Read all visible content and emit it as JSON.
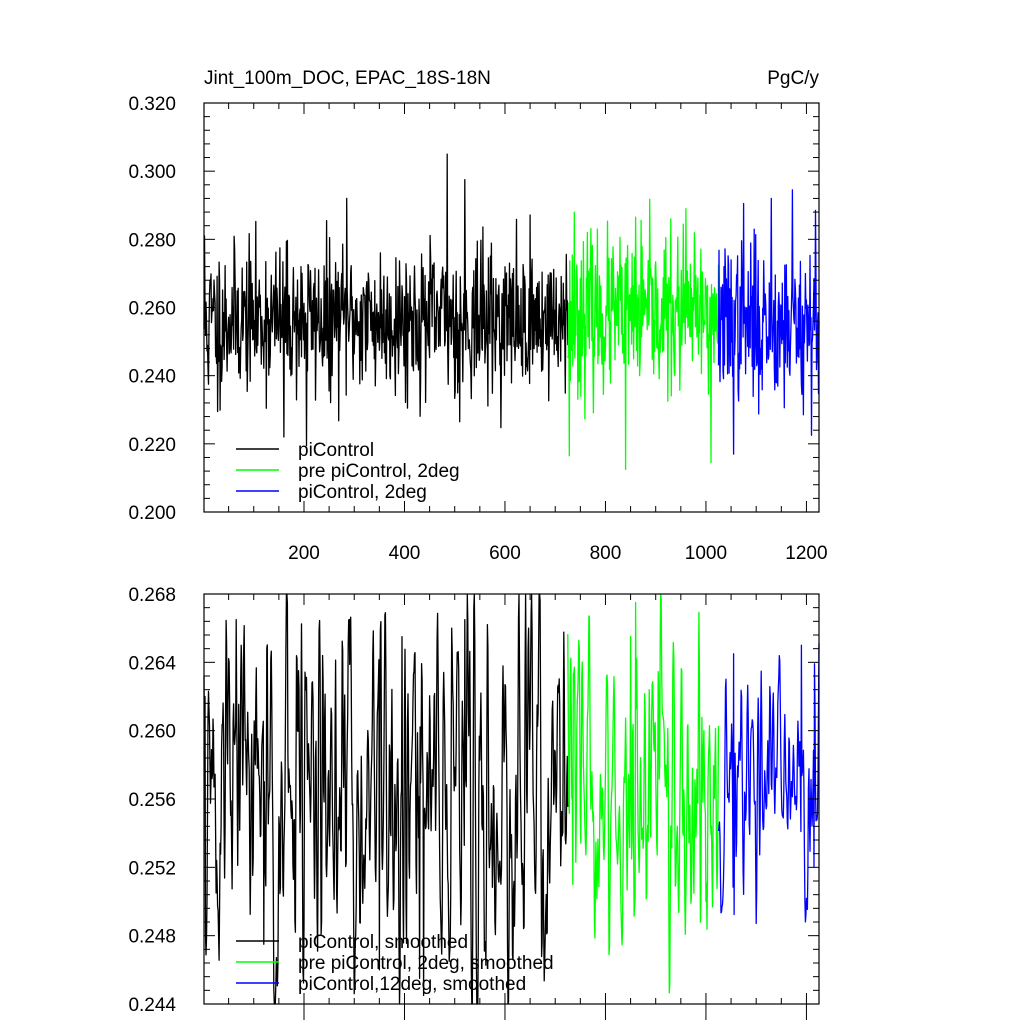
{
  "chart_data": [
    {
      "type": "line",
      "title": "Jint_100m_DOC, EPAC_18S-18N",
      "units_label": "PgC/y",
      "xlim": [
        1,
        1225
      ],
      "ylim": [
        0.2,
        0.32
      ],
      "x_ticks": [
        200,
        400,
        600,
        800,
        1000,
        1200
      ],
      "x_tick_labels": [
        "200",
        "400",
        "600",
        "800",
        "1000",
        "1200"
      ],
      "y_ticks": [
        0.2,
        0.22,
        0.24,
        0.26,
        0.28,
        0.3,
        0.32
      ],
      "y_tick_labels": [
        "0.200",
        "0.220",
        "0.240",
        "0.260",
        "0.280",
        "0.300",
        "0.320"
      ],
      "grid": false,
      "legend_position": "bottom-left",
      "series": [
        {
          "name": "piControl",
          "color": "#000000",
          "x_range": [
            1,
            725
          ],
          "mean": 0.2565,
          "spread": 0.0105,
          "smoothing": 1,
          "seed": 11,
          "peaks": [
            [
              2,
              0.281
            ],
            [
              10,
              0.2375
            ],
            [
              28,
              0.2295
            ],
            [
              160,
              0.222
            ],
            [
              205,
              0.2195
            ],
            [
              245,
              0.2855
            ],
            [
              250,
              0.2355
            ],
            [
              285,
              0.292
            ],
            [
              485,
              0.305
            ],
            [
              510,
              0.2265
            ],
            [
              520,
              0.2975
            ]
          ]
        },
        {
          "name": "pre piControl, 2deg",
          "color": "#00ff00",
          "x_range": [
            725,
            1025
          ],
          "mean": 0.2575,
          "spread": 0.0115,
          "smoothing": 1,
          "seed": 23,
          "peaks": [
            [
              728,
              0.2165
            ],
            [
              738,
              0.288
            ],
            [
              840,
              0.2125
            ],
            [
              860,
              0.2865
            ],
            [
              960,
              0.289
            ],
            [
              1010,
              0.2145
            ]
          ]
        },
        {
          "name": "piControl, 2deg",
          "color": "#0000ff",
          "x_range": [
            1025,
            1225
          ],
          "mean": 0.2555,
          "spread": 0.0115,
          "smoothing": 1,
          "seed": 37,
          "peaks": [
            [
              1055,
              0.217
            ],
            [
              1075,
              0.2905
            ],
            [
              1130,
              0.292
            ],
            [
              1172,
              0.2945
            ],
            [
              1210,
              0.2225
            ],
            [
              1218,
              0.2885
            ]
          ]
        }
      ]
    },
    {
      "type": "line",
      "title": "",
      "xlim": [
        1,
        1225
      ],
      "ylim": [
        0.244,
        0.268
      ],
      "x_ticks": [
        200,
        400,
        600,
        800,
        1000,
        1200
      ],
      "x_tick_labels": [],
      "y_ticks": [
        0.244,
        0.248,
        0.252,
        0.256,
        0.26,
        0.264,
        0.268
      ],
      "y_tick_labels": [
        "0.244",
        "0.248",
        "0.252",
        "0.256",
        "0.260",
        "0.264",
        "0.268"
      ],
      "grid": false,
      "legend_position": "bottom-left",
      "series": [
        {
          "name": "piControl, smoothed",
          "color": "#000000",
          "x_range": [
            1,
            725
          ],
          "mean": 0.2562,
          "spread": 0.0055,
          "smoothing": 2,
          "seed": 51,
          "peaks": [
            [
              3,
              0.262
            ],
            [
              25,
              0.2505
            ],
            [
              65,
              0.2665
            ],
            [
              120,
              0.2475
            ],
            [
              200,
              0.2485
            ],
            [
              290,
              0.2665
            ],
            [
              350,
              0.246
            ],
            [
              395,
              0.2655
            ],
            [
              430,
              0.2455
            ],
            [
              438,
              0.2445
            ],
            [
              520,
              0.2665
            ]
          ]
        },
        {
          "name": "pre piControl, 2deg, smoothed",
          "color": "#00ff00",
          "x_range": [
            725,
            1025
          ],
          "mean": 0.2565,
          "spread": 0.0045,
          "smoothing": 2,
          "seed": 63,
          "peaks": [
            [
              735,
              0.251
            ],
            [
              860,
              0.2675
            ],
            [
              850,
              0.2655
            ],
            [
              1000,
              0.25
            ]
          ]
        },
        {
          "name": "piControl,12deg, smoothed",
          "color": "#0000ff",
          "x_range": [
            1025,
            1225
          ],
          "mean": 0.2565,
          "spread": 0.0035,
          "smoothing": 2,
          "seed": 71,
          "peaks": [
            [
              1055,
              0.2645
            ],
            [
              1190,
              0.265
            ],
            [
              1215,
              0.252
            ]
          ]
        }
      ]
    }
  ]
}
